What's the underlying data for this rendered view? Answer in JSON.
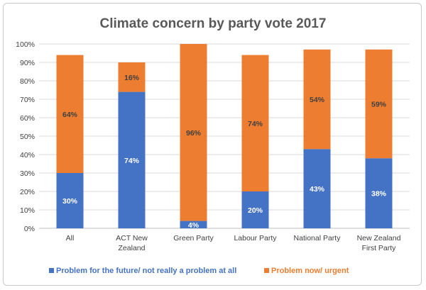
{
  "chart_data": {
    "type": "bar",
    "stacked": true,
    "title": "Climate concern by party vote 2017",
    "categories": [
      [
        "All"
      ],
      [
        "ACT New",
        "Zealand"
      ],
      [
        "Green Party"
      ],
      [
        "Labour Party"
      ],
      [
        "National Party"
      ],
      [
        "New Zealand",
        "First Party"
      ]
    ],
    "series": [
      {
        "name": "Problem for the future/ not really a problem at all",
        "color": "#4472C4",
        "label_color": "#ffffff",
        "values": [
          30,
          74,
          4,
          20,
          43,
          38
        ],
        "labels": [
          "30%",
          "74%",
          "4%",
          "20%",
          "43%",
          "38%"
        ]
      },
      {
        "name": "Problem now/ urgent",
        "color": "#ED7D31",
        "label_color": "#404040",
        "values": [
          64,
          16,
          96,
          74,
          54,
          59
        ],
        "labels": [
          "64%",
          "16%",
          "96%",
          "74%",
          "54%",
          "59%"
        ]
      }
    ],
    "ylim": [
      0,
      100
    ],
    "yticks": [
      "0%",
      "10%",
      "20%",
      "30%",
      "40%",
      "50%",
      "60%",
      "70%",
      "80%",
      "90%",
      "100%"
    ],
    "grid": true,
    "legend_position": "bottom"
  }
}
